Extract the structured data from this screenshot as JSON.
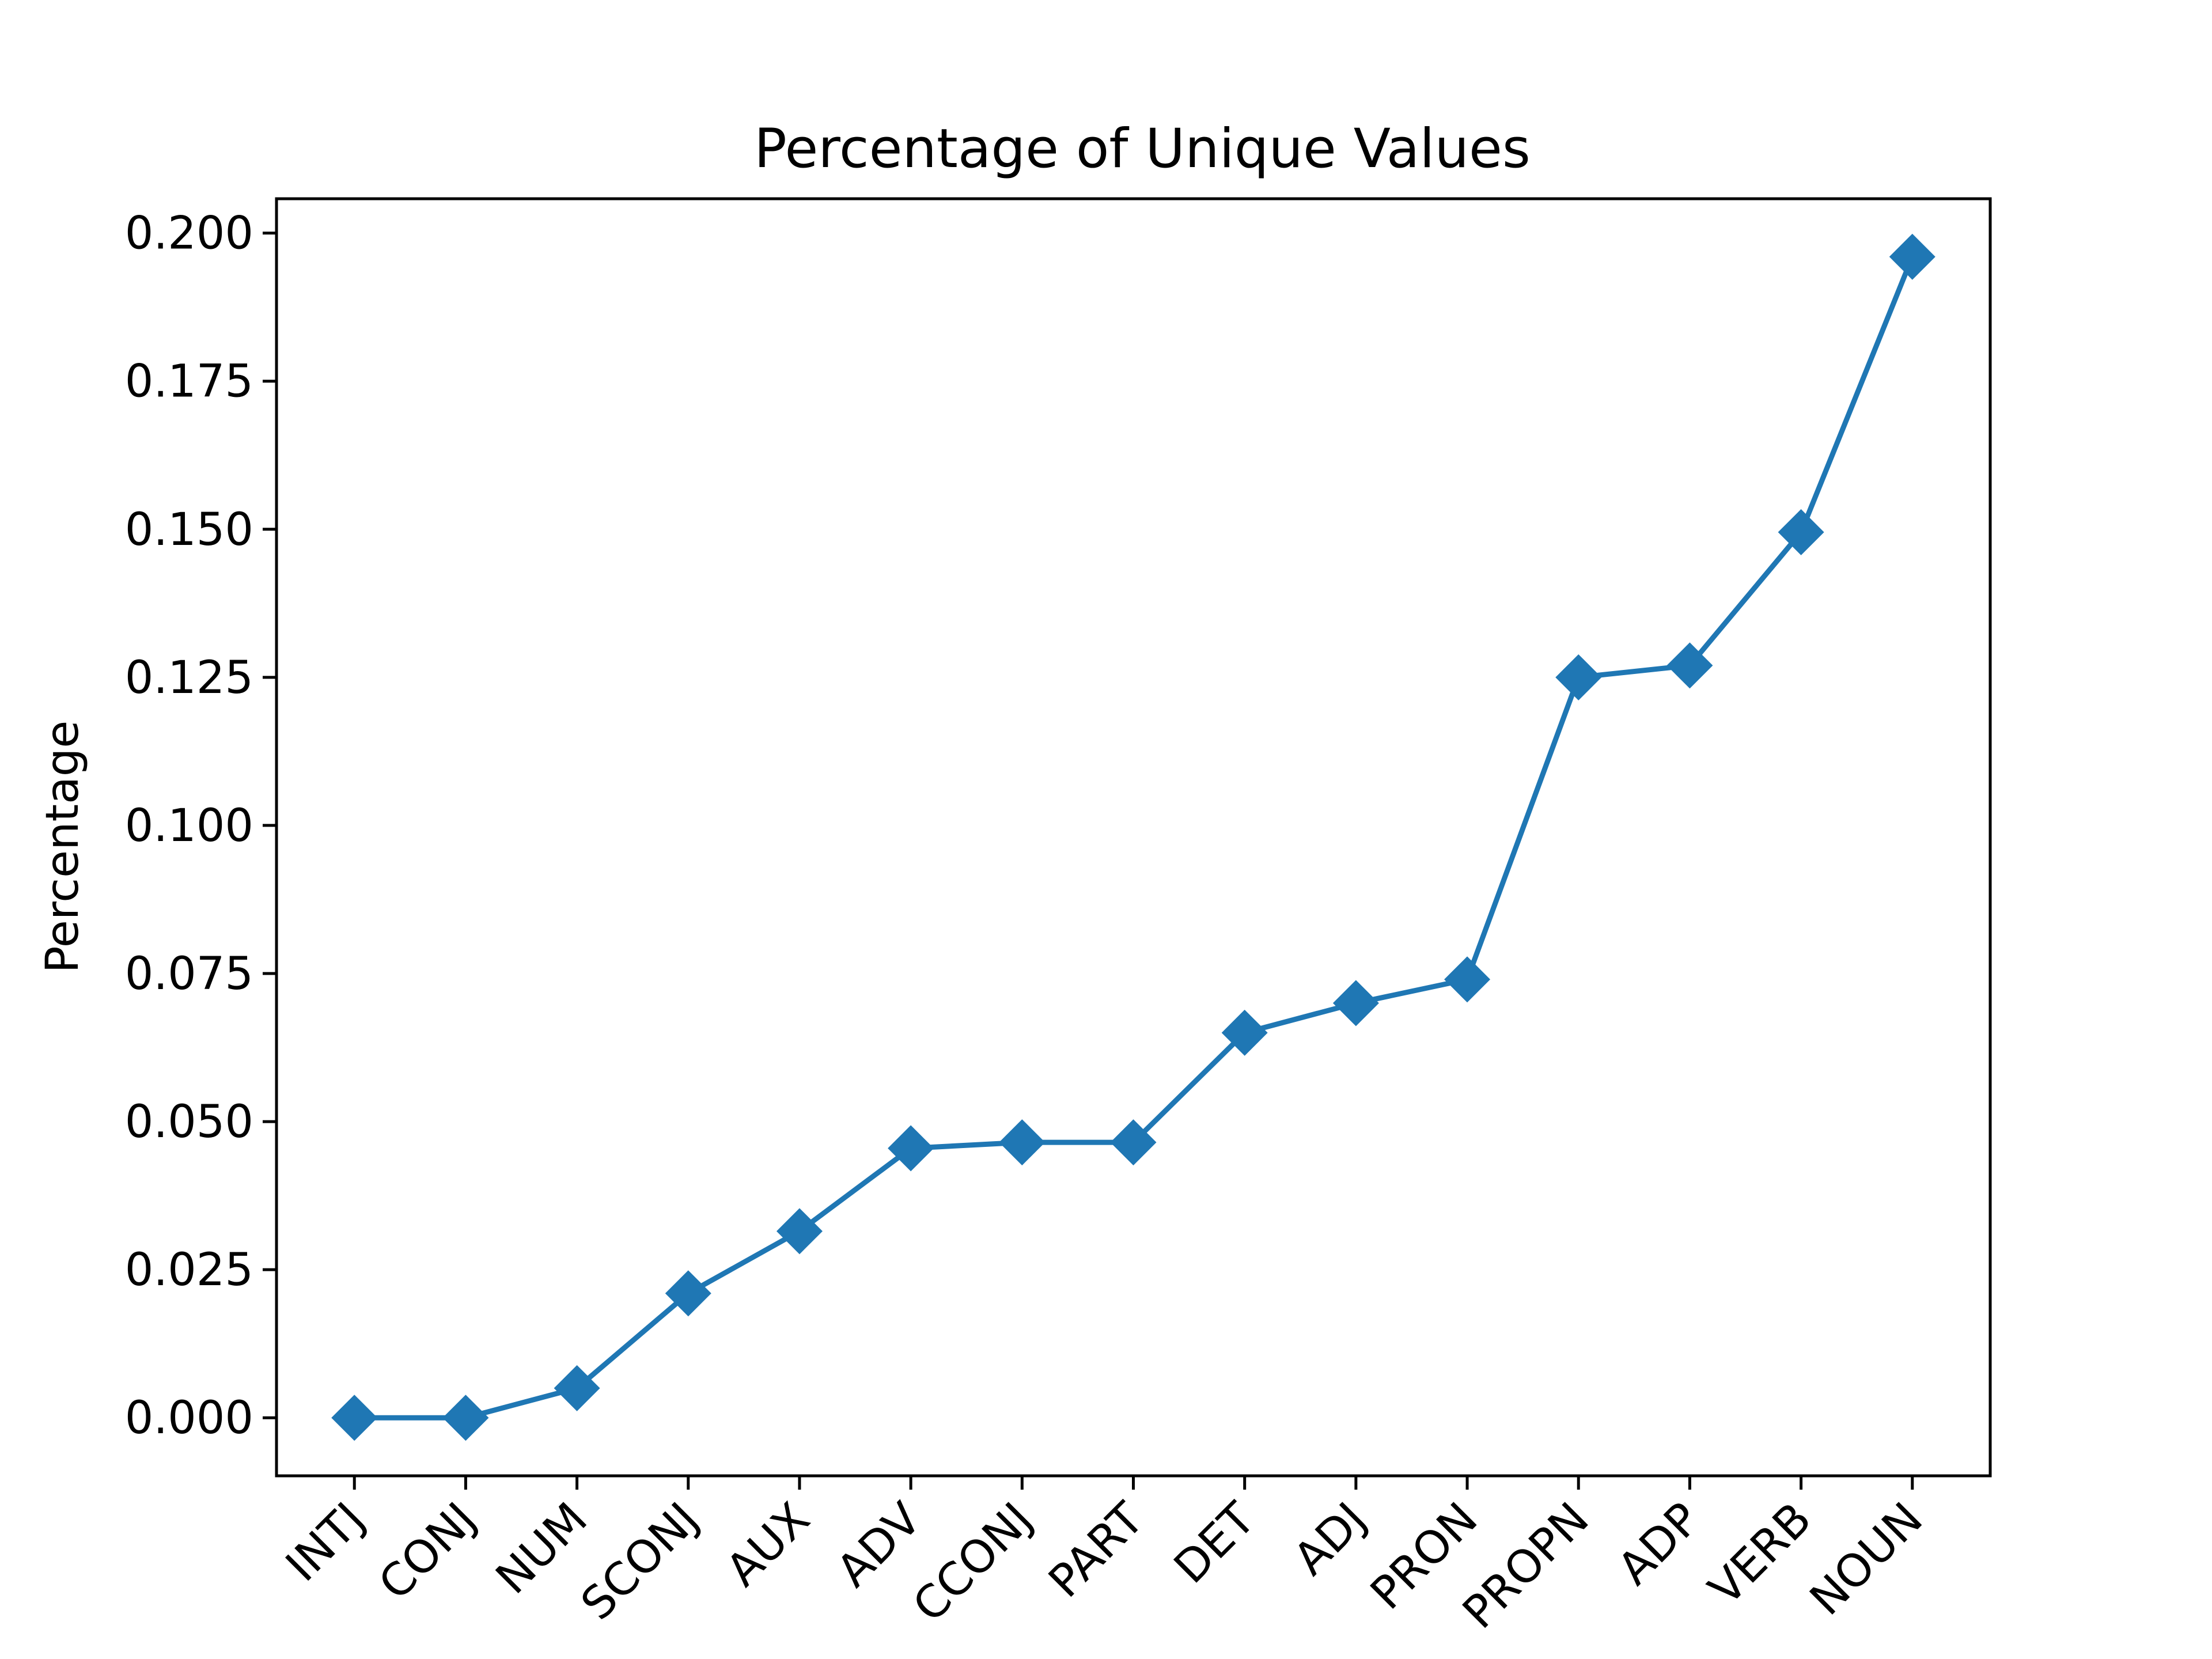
{
  "chart_data": {
    "type": "line",
    "title": "Percentage of Unique Values",
    "xlabel": "",
    "ylabel": "Percentage",
    "categories": [
      "INTJ",
      "CONJ",
      "NUM",
      "SCONJ",
      "AUX",
      "ADV",
      "CCONJ",
      "PART",
      "DET",
      "ADJ",
      "PRON",
      "PROPN",
      "ADP",
      "VERB",
      "NOUN"
    ],
    "series": [
      {
        "values": [
          0.0,
          0.0,
          0.005,
          0.021,
          0.0315,
          0.0455,
          0.0465,
          0.0465,
          0.065,
          0.07,
          0.074,
          0.125,
          0.127,
          0.1495,
          0.196
        ],
        "color": "#1f77b4",
        "marker": "diamond"
      }
    ],
    "ylim": [
      -0.0098,
      0.2058
    ],
    "yticks": [
      0.0,
      0.025,
      0.05,
      0.075,
      0.1,
      0.125,
      0.15,
      0.175,
      0.2
    ],
    "ytick_labels": [
      "0.000",
      "0.025",
      "0.050",
      "0.075",
      "0.100",
      "0.125",
      "0.150",
      "0.175",
      "0.200"
    ],
    "grid": false,
    "legend": "none"
  }
}
